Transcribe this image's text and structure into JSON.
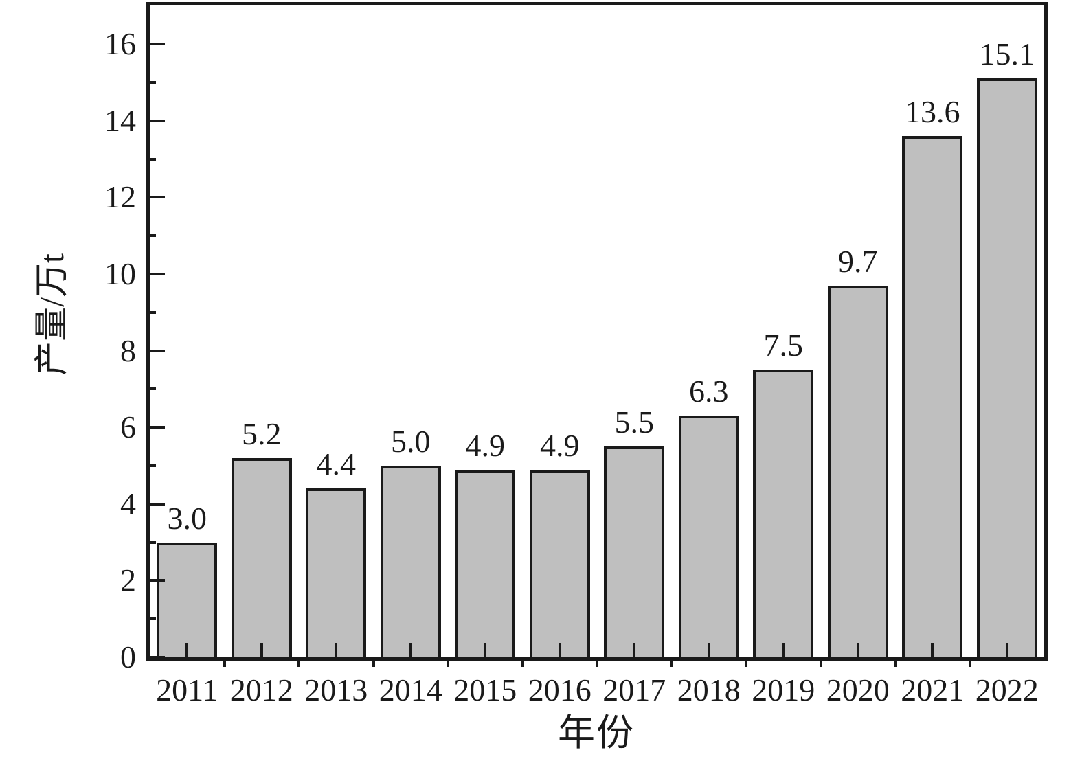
{
  "chart_data": {
    "type": "bar",
    "title": "",
    "xlabel": "年份",
    "ylabel": "产量/万t",
    "categories": [
      "2011",
      "2012",
      "2013",
      "2014",
      "2015",
      "2016",
      "2017",
      "2018",
      "2019",
      "2020",
      "2021",
      "2022"
    ],
    "values": [
      3.0,
      5.2,
      4.4,
      5.0,
      4.9,
      4.9,
      5.5,
      6.3,
      7.5,
      9.7,
      13.6,
      15.1
    ],
    "value_labels": [
      "3.0",
      "5.2",
      "4.4",
      "5.0",
      "4.9",
      "4.9",
      "5.5",
      "6.3",
      "7.5",
      "9.7",
      "13.6",
      "15.1"
    ],
    "yticks": [
      0,
      2,
      4,
      6,
      8,
      10,
      12,
      14,
      16
    ],
    "ytick_labels": [
      "0",
      "2",
      "4",
      "6",
      "8",
      "10",
      "12",
      "14",
      "16"
    ],
    "yticks_minor": [
      1,
      3,
      5,
      7,
      9,
      11,
      13,
      15
    ],
    "ylim": [
      0,
      17
    ],
    "grid": "off",
    "legend": "none",
    "bar_fill_color": "#bfbfbf",
    "bar_edge_color": "#1a1a1a",
    "axis_color": "#1a1a1a",
    "text_color": "#1a1a1a",
    "background_color": "#ffffff"
  }
}
